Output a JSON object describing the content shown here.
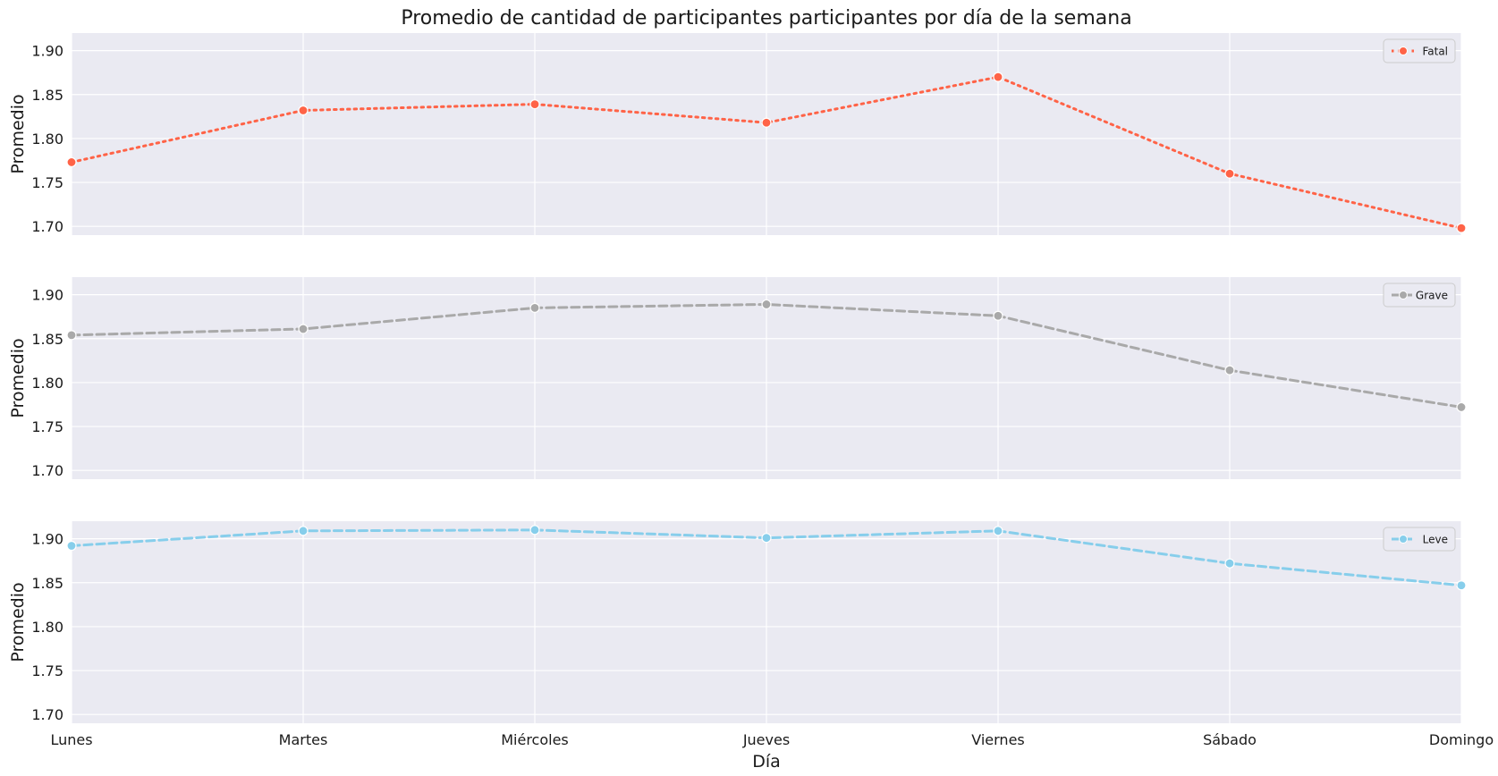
{
  "chart_data": {
    "type": "line",
    "title": "Promedio de cantidad de participantes participantes por día de la semana",
    "xlabel": "Día",
    "ylabel": "Promedio",
    "categories": [
      "Lunes",
      "Martes",
      "Miércoles",
      "Jueves",
      "Viernes",
      "Sábado",
      "Domingo"
    ],
    "ylim": [
      1.69,
      1.92
    ],
    "yticks": [
      1.7,
      1.75,
      1.8,
      1.85,
      1.9
    ],
    "ytick_labels": [
      "1.70",
      "1.75",
      "1.80",
      "1.85",
      "1.90"
    ],
    "grid": true,
    "legend_position": "upper right",
    "layout": "3 vertically stacked subplots sharing the x axis",
    "series": [
      {
        "name": "Fatal",
        "color": "#ff6347",
        "line_style": "dotted",
        "values": [
          1.773,
          1.832,
          1.839,
          1.818,
          1.87,
          1.76,
          1.698
        ]
      },
      {
        "name": "Grave",
        "color": "#a9a9a9",
        "line_style": "dashed",
        "values": [
          1.854,
          1.861,
          1.885,
          1.889,
          1.876,
          1.814,
          1.772
        ]
      },
      {
        "name": "Leve",
        "color": "#87ceeb",
        "line_style": "dashed",
        "values": [
          1.892,
          1.909,
          1.91,
          1.901,
          1.909,
          1.872,
          1.847
        ]
      }
    ]
  }
}
